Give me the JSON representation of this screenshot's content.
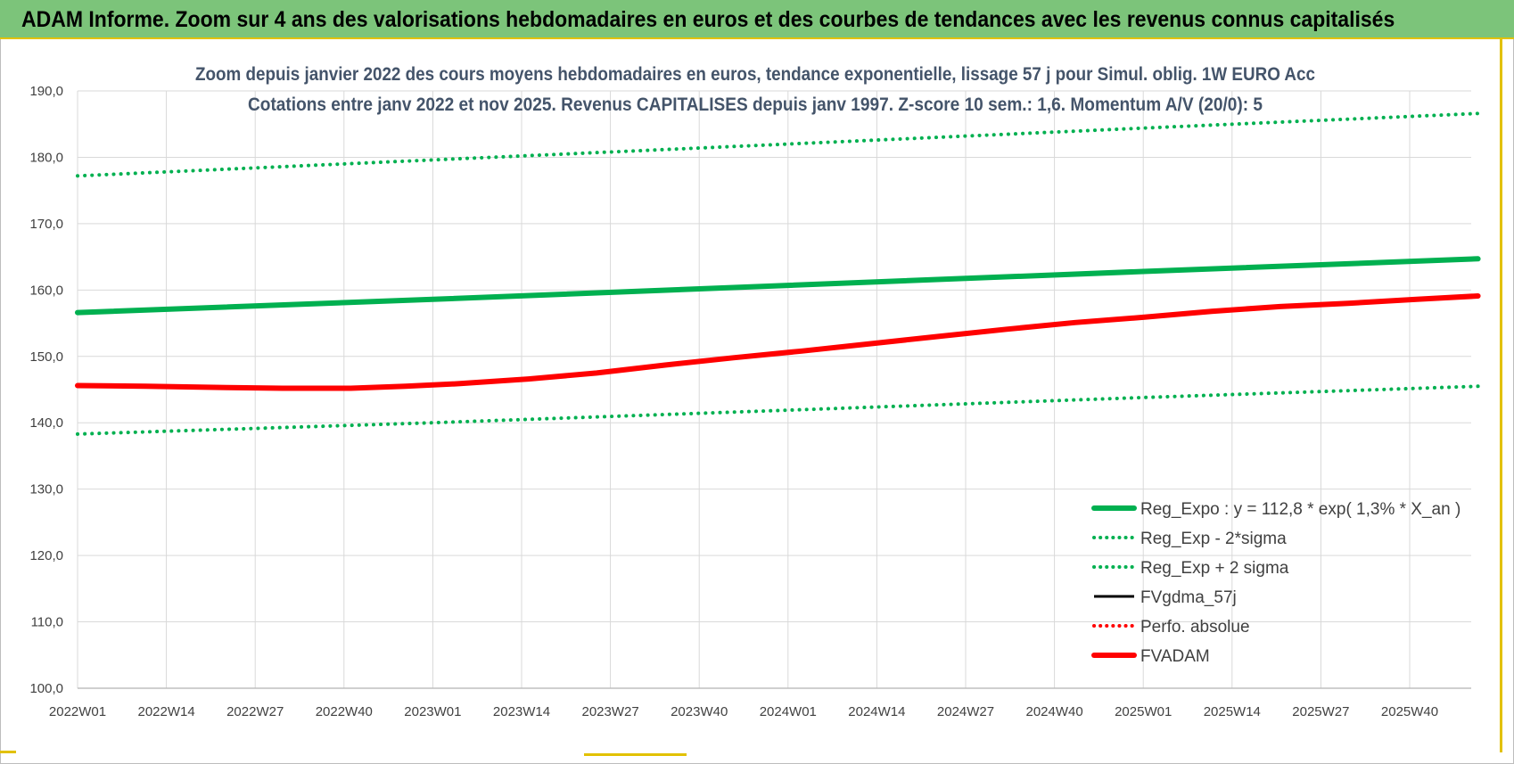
{
  "banner": {
    "title": "ADAM Informe. Zoom sur 4 ans des valorisations hebdomadaires en euros et des courbes de tendances avec les revenus connus capitalisés"
  },
  "colors": {
    "banner_bg": "#7cc47a",
    "accent": "#e2c100",
    "green": "#00b050",
    "red": "#ff0000",
    "black": "#000000",
    "grid": "#d9d9d9",
    "title_text": "#44546a"
  },
  "chart_data": {
    "type": "line",
    "title_lines": [
      "Zoom depuis janvier 2022 des cours moyens hebdomadaires en euros, tendance exponentielle, lissage 57 j pour Simul. oblig. 1W EURO Acc",
      "Cotations entre janv 2022 et nov 2025. Revenus CAPITALISES depuis janv 1997. Z-score 10 sem.: 1,6. Momentum A/V (20/0): 5"
    ],
    "xlabel": "",
    "ylabel": "",
    "ylim": [
      100,
      190
    ],
    "yticks": [
      "100,0",
      "110,0",
      "120,0",
      "130,0",
      "140,0",
      "150,0",
      "160,0",
      "170,0",
      "180,0",
      "190,0"
    ],
    "x_tick_labels": [
      "2022W01",
      "2022W14",
      "2022W27",
      "2022W40",
      "2023W01",
      "2023W14",
      "2023W27",
      "2023W40",
      "2024W01",
      "2024W14",
      "2024W27",
      "2024W40",
      "2025W01",
      "2025W14",
      "2025W27",
      "2025W40"
    ],
    "x_tick_week_index": [
      0,
      13,
      26,
      39,
      52,
      65,
      78,
      91,
      104,
      117,
      130,
      143,
      156,
      169,
      182,
      195
    ],
    "x_range_weeks": [
      0,
      205
    ],
    "grid": true,
    "legend_position": "bottom-right",
    "series": [
      {
        "name": "Reg_Expo : y = 112,8 * exp( 1,3% *  X_an )",
        "style": "solid-thick",
        "color": "#00b050",
        "points": [
          [
            0,
            156.6
          ],
          [
            52,
            158.6
          ],
          [
            104,
            160.7
          ],
          [
            156,
            162.8
          ],
          [
            205,
            164.7
          ]
        ]
      },
      {
        "name": "Reg_Exp - 2*sigma",
        "style": "dotted",
        "color": "#00b050",
        "points": [
          [
            0,
            138.3
          ],
          [
            52,
            140.0
          ],
          [
            104,
            141.9
          ],
          [
            156,
            143.8
          ],
          [
            205,
            145.5
          ]
        ]
      },
      {
        "name": "Reg_Exp + 2 sigma",
        "style": "dotted",
        "color": "#00b050",
        "points": [
          [
            0,
            177.2
          ],
          [
            52,
            179.6
          ],
          [
            104,
            182.0
          ],
          [
            156,
            184.4
          ],
          [
            205,
            186.6
          ]
        ]
      },
      {
        "name": "FVgdma_57j",
        "style": "solid",
        "color": "#000000",
        "points": []
      },
      {
        "name": "Perfo. absolue",
        "style": "dotted",
        "color": "#ff0000",
        "points": []
      },
      {
        "name": "FVADAM",
        "style": "solid-thick",
        "color": "#ff0000",
        "points": [
          [
            0,
            145.6
          ],
          [
            10,
            145.5
          ],
          [
            22,
            145.3
          ],
          [
            30,
            145.2
          ],
          [
            40,
            145.2
          ],
          [
            48,
            145.5
          ],
          [
            56,
            145.9
          ],
          [
            66,
            146.6
          ],
          [
            76,
            147.5
          ],
          [
            86,
            148.7
          ],
          [
            96,
            149.8
          ],
          [
            106,
            150.8
          ],
          [
            116,
            151.9
          ],
          [
            126,
            153.0
          ],
          [
            136,
            154.1
          ],
          [
            146,
            155.1
          ],
          [
            156,
            155.9
          ],
          [
            166,
            156.8
          ],
          [
            176,
            157.5
          ],
          [
            186,
            158.0
          ],
          [
            196,
            158.6
          ],
          [
            205,
            159.1
          ]
        ]
      }
    ]
  }
}
